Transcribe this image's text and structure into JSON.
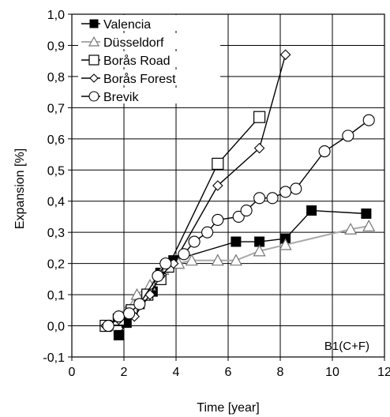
{
  "chart_data": {
    "type": "line",
    "title": "",
    "xlabel": "Time [year]",
    "ylabel": "Expansion [%]",
    "xlim": [
      0,
      12
    ],
    "ylim": [
      -0.1,
      1.0
    ],
    "xticks": [
      0,
      2,
      4,
      6,
      8,
      10,
      12
    ],
    "xtick_labels": [
      "0",
      "2",
      "4",
      "6",
      "8",
      "10",
      "12"
    ],
    "yticks": [
      -0.1,
      0.0,
      0.1,
      0.2,
      0.3,
      0.4,
      0.5,
      0.6,
      0.7,
      0.8,
      0.9,
      1.0
    ],
    "ytick_labels": [
      "-0,1",
      "0,0",
      "0,1",
      "0,2",
      "0,3",
      "0,4",
      "0,5",
      "0,6",
      "0,7",
      "0,8",
      "0,9",
      "1,0"
    ],
    "grid": true,
    "legend_position": "top-left",
    "annotation": "B1(C+F)",
    "series": [
      {
        "name": "Valencia",
        "marker": "square-filled",
        "line_color": "#000000",
        "x": [
          1.4,
          1.8,
          2.1,
          2.6,
          3.1,
          3.4,
          3.9,
          6.3,
          7.2,
          8.2,
          9.2,
          11.3
        ],
        "y": [
          0.0,
          -0.03,
          0.01,
          0.07,
          0.11,
          0.17,
          0.21,
          0.27,
          0.27,
          0.28,
          0.37,
          0.36
        ]
      },
      {
        "name": "Düsseldorf",
        "marker": "triangle-open",
        "line_color": "#aaaaaa",
        "x": [
          1.4,
          1.8,
          2.1,
          2.5,
          3.0,
          3.5,
          4.1,
          4.6,
          5.6,
          6.3,
          7.2,
          8.2,
          10.7,
          11.4
        ],
        "y": [
          0.0,
          0.03,
          0.05,
          0.1,
          0.13,
          0.18,
          0.2,
          0.21,
          0.21,
          0.21,
          0.24,
          0.26,
          0.31,
          0.32
        ]
      },
      {
        "name": "Borås Road",
        "marker": "square-open",
        "line_color": "#000000",
        "x": [
          1.3,
          1.8,
          2.3,
          2.9,
          3.4,
          3.7,
          5.6,
          7.2
        ],
        "y": [
          0.0,
          0.02,
          0.05,
          0.1,
          0.15,
          0.19,
          0.52,
          0.67
        ]
      },
      {
        "name": "Borås Forest",
        "marker": "diamond-open",
        "line_color": "#000000",
        "x": [
          1.3,
          1.8,
          2.4,
          3.0,
          3.4,
          3.9,
          5.6,
          7.2,
          8.2
        ],
        "y": [
          0.0,
          0.02,
          0.03,
          0.1,
          0.16,
          0.2,
          0.45,
          0.57,
          0.87
        ]
      },
      {
        "name": "Brevik",
        "marker": "circle-open",
        "line_color": "#000000",
        "x": [
          1.4,
          1.8,
          2.2,
          2.6,
          3.3,
          3.6,
          4.3,
          4.7,
          5.2,
          5.6,
          6.4,
          6.7,
          7.2,
          7.7,
          8.2,
          8.6,
          9.7,
          10.6,
          11.4
        ],
        "y": [
          0.0,
          0.03,
          0.04,
          0.07,
          0.16,
          0.2,
          0.23,
          0.27,
          0.3,
          0.34,
          0.35,
          0.37,
          0.41,
          0.41,
          0.43,
          0.44,
          0.56,
          0.61,
          0.66
        ]
      }
    ]
  }
}
